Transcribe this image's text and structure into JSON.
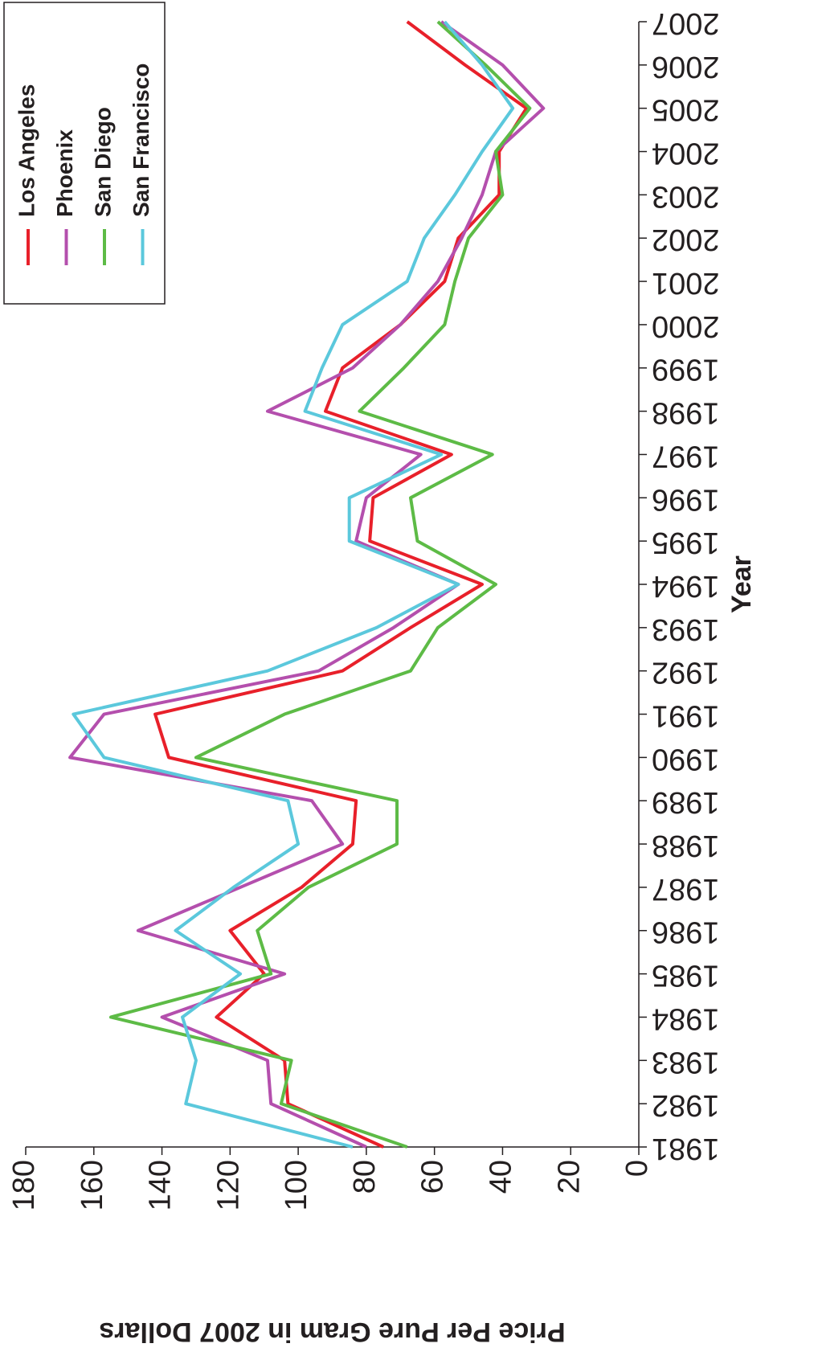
{
  "chart_data": {
    "type": "line",
    "x_label": "Year",
    "y_label": "Price Per Pure Gram in 2007 Dollars",
    "x": [
      1981,
      1982,
      1983,
      1984,
      1985,
      1986,
      1987,
      1988,
      1989,
      1990,
      1991,
      1992,
      1993,
      1994,
      1995,
      1996,
      1997,
      1998,
      1999,
      2000,
      2001,
      2002,
      2003,
      2004,
      2005,
      2006,
      2007
    ],
    "xlim": [
      1981,
      2007
    ],
    "xticks": [
      1981,
      1982,
      1983,
      1984,
      1985,
      1986,
      1987,
      1988,
      1989,
      1990,
      1991,
      1992,
      1993,
      1994,
      1995,
      1996,
      1997,
      1998,
      1999,
      2000,
      2001,
      2002,
      2003,
      2004,
      2005,
      2006,
      2007
    ],
    "ylim": [
      0,
      180
    ],
    "yticks": [
      0,
      20,
      40,
      60,
      80,
      100,
      120,
      140,
      160,
      180
    ],
    "legend": "top-right",
    "rotation": -90,
    "series": [
      {
        "name": "Los Angeles",
        "color": "#e8202a",
        "values": [
          75,
          103,
          104,
          124,
          110,
          120,
          99,
          84,
          83,
          138,
          142,
          87,
          67,
          46,
          79,
          78,
          55,
          92,
          87,
          70,
          57,
          53,
          41,
          41,
          33,
          51,
          68
        ]
      },
      {
        "name": "Phoenix",
        "color": "#b44fad",
        "values": [
          80,
          108,
          109,
          140,
          104,
          147,
          117,
          87,
          96,
          167,
          157,
          94,
          72,
          53,
          83,
          80,
          64,
          109,
          84,
          70,
          59,
          52,
          46,
          42,
          28,
          40,
          58
        ]
      },
      {
        "name": "San Diego",
        "color": "#5dbb46",
        "values": [
          68,
          105,
          102,
          155,
          108,
          112,
          97,
          71,
          71,
          130,
          104,
          67,
          59,
          42,
          65,
          67,
          43,
          82,
          69,
          57,
          54,
          50,
          40,
          42,
          32,
          45,
          59
        ]
      },
      {
        "name": "San Francisco",
        "color": "#5bc8dc",
        "values": [
          84,
          133,
          130,
          134,
          117,
          136,
          119,
          100,
          103,
          157,
          166,
          109,
          77,
          53,
          85,
          85,
          58,
          98,
          93,
          87,
          68,
          63,
          54,
          46,
          37,
          46,
          57
        ]
      }
    ]
  }
}
